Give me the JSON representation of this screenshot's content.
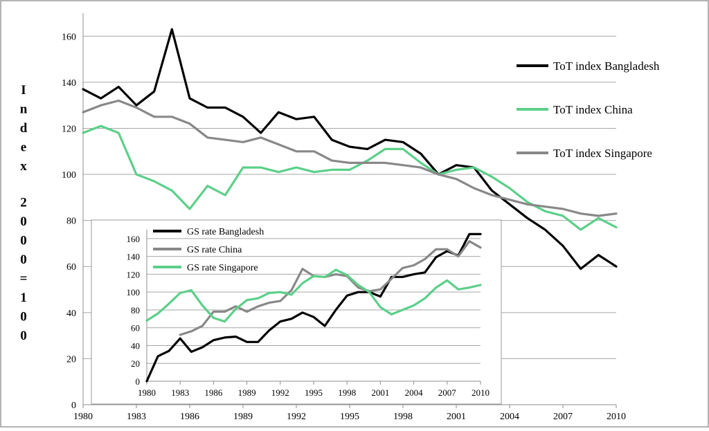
{
  "chart_data": [
    {
      "type": "line",
      "title": "",
      "xlabel": "",
      "ylabel": "Index 2000=100",
      "x": [
        1980,
        1981,
        1982,
        1983,
        1984,
        1985,
        1986,
        1987,
        1988,
        1989,
        1990,
        1991,
        1992,
        1993,
        1994,
        1995,
        1996,
        1997,
        1998,
        1999,
        2000,
        2001,
        2002,
        2003,
        2004,
        2005,
        2006,
        2007,
        2008,
        2009,
        2010
      ],
      "xticks": [
        "1980",
        "1983",
        "1986",
        "1989",
        "1992",
        "1995",
        "1998",
        "2001",
        "2004",
        "2007",
        "2010"
      ],
      "yticks": [
        "0",
        "20",
        "40",
        "60",
        "80",
        "100",
        "120",
        "140",
        "160"
      ],
      "xlim": [
        1980,
        2010
      ],
      "ylim": [
        0,
        170
      ],
      "grid": true,
      "legend_position": "right",
      "series": [
        {
          "name": "ToT index Bangladesh",
          "color": "#000000",
          "values": [
            137,
            133,
            138,
            130,
            136,
            163,
            133,
            129,
            129,
            125,
            118,
            127,
            124,
            125,
            115,
            112,
            111,
            115,
            114,
            109,
            100,
            104,
            103,
            93,
            87,
            81,
            76,
            69,
            59,
            65,
            60
          ]
        },
        {
          "name": "ToT index China",
          "color": "#5ccf8a",
          "values": [
            118,
            121,
            118,
            100,
            97,
            93,
            85,
            95,
            91,
            103,
            103,
            101,
            103,
            101,
            102,
            102,
            106,
            111,
            111,
            105,
            100,
            102,
            103,
            99,
            94,
            88,
            84,
            82,
            76,
            81,
            77
          ]
        },
        {
          "name": "ToT index Singapore",
          "color": "#888888",
          "values": [
            127,
            130,
            132,
            129,
            125,
            125,
            122,
            116,
            115,
            114,
            116,
            113,
            110,
            110,
            106,
            105,
            105,
            105,
            104,
            103,
            100,
            98,
            94,
            91,
            89,
            87,
            86,
            85,
            83,
            82,
            83
          ]
        }
      ]
    },
    {
      "type": "line",
      "title": "",
      "xlabel": "",
      "ylabel": "",
      "x": [
        1980,
        1981,
        1982,
        1983,
        1984,
        1985,
        1986,
        1987,
        1988,
        1989,
        1990,
        1991,
        1992,
        1993,
        1994,
        1995,
        1996,
        1997,
        1998,
        1999,
        2000,
        2001,
        2002,
        2003,
        2004,
        2005,
        2006,
        2007,
        2008,
        2009,
        2010
      ],
      "xticks": [
        "1980",
        "1983",
        "1986",
        "1989",
        "1992",
        "1995",
        "1998",
        "2001",
        "2004",
        "2007",
        "2010"
      ],
      "yticks": [
        "0",
        "20",
        "40",
        "60",
        "80",
        "100",
        "120",
        "140",
        "160"
      ],
      "xlim": [
        1980,
        2010
      ],
      "ylim": [
        0,
        170
      ],
      "grid": true,
      "legend_position": "top-left",
      "series": [
        {
          "name": "GS rate Bangladesh",
          "color": "#000000",
          "values": [
            0,
            28,
            34,
            48,
            33,
            38,
            46,
            49,
            50,
            44,
            44,
            57,
            67,
            70,
            77,
            72,
            62,
            80,
            96,
            100,
            100,
            95,
            117,
            117,
            120,
            122,
            139,
            146,
            141,
            165,
            165
          ]
        },
        {
          "name": "GS rate China",
          "color": "#888888",
          "values": [
            null,
            null,
            null,
            52,
            56,
            62,
            78,
            78,
            84,
            78,
            84,
            88,
            90,
            102,
            126,
            118,
            117,
            120,
            118,
            105,
            101,
            103,
            115,
            127,
            130,
            137,
            148,
            148,
            140,
            157,
            150
          ]
        },
        {
          "name": "GS rate Singapore",
          "color": "#5ccf8a",
          "values": [
            68,
            76,
            87,
            99,
            102,
            85,
            71,
            67,
            81,
            91,
            93,
            99,
            100,
            97,
            110,
            118,
            117,
            125,
            119,
            108,
            100,
            83,
            75,
            80,
            85,
            93,
            105,
            113,
            103,
            105,
            108
          ]
        }
      ]
    }
  ]
}
